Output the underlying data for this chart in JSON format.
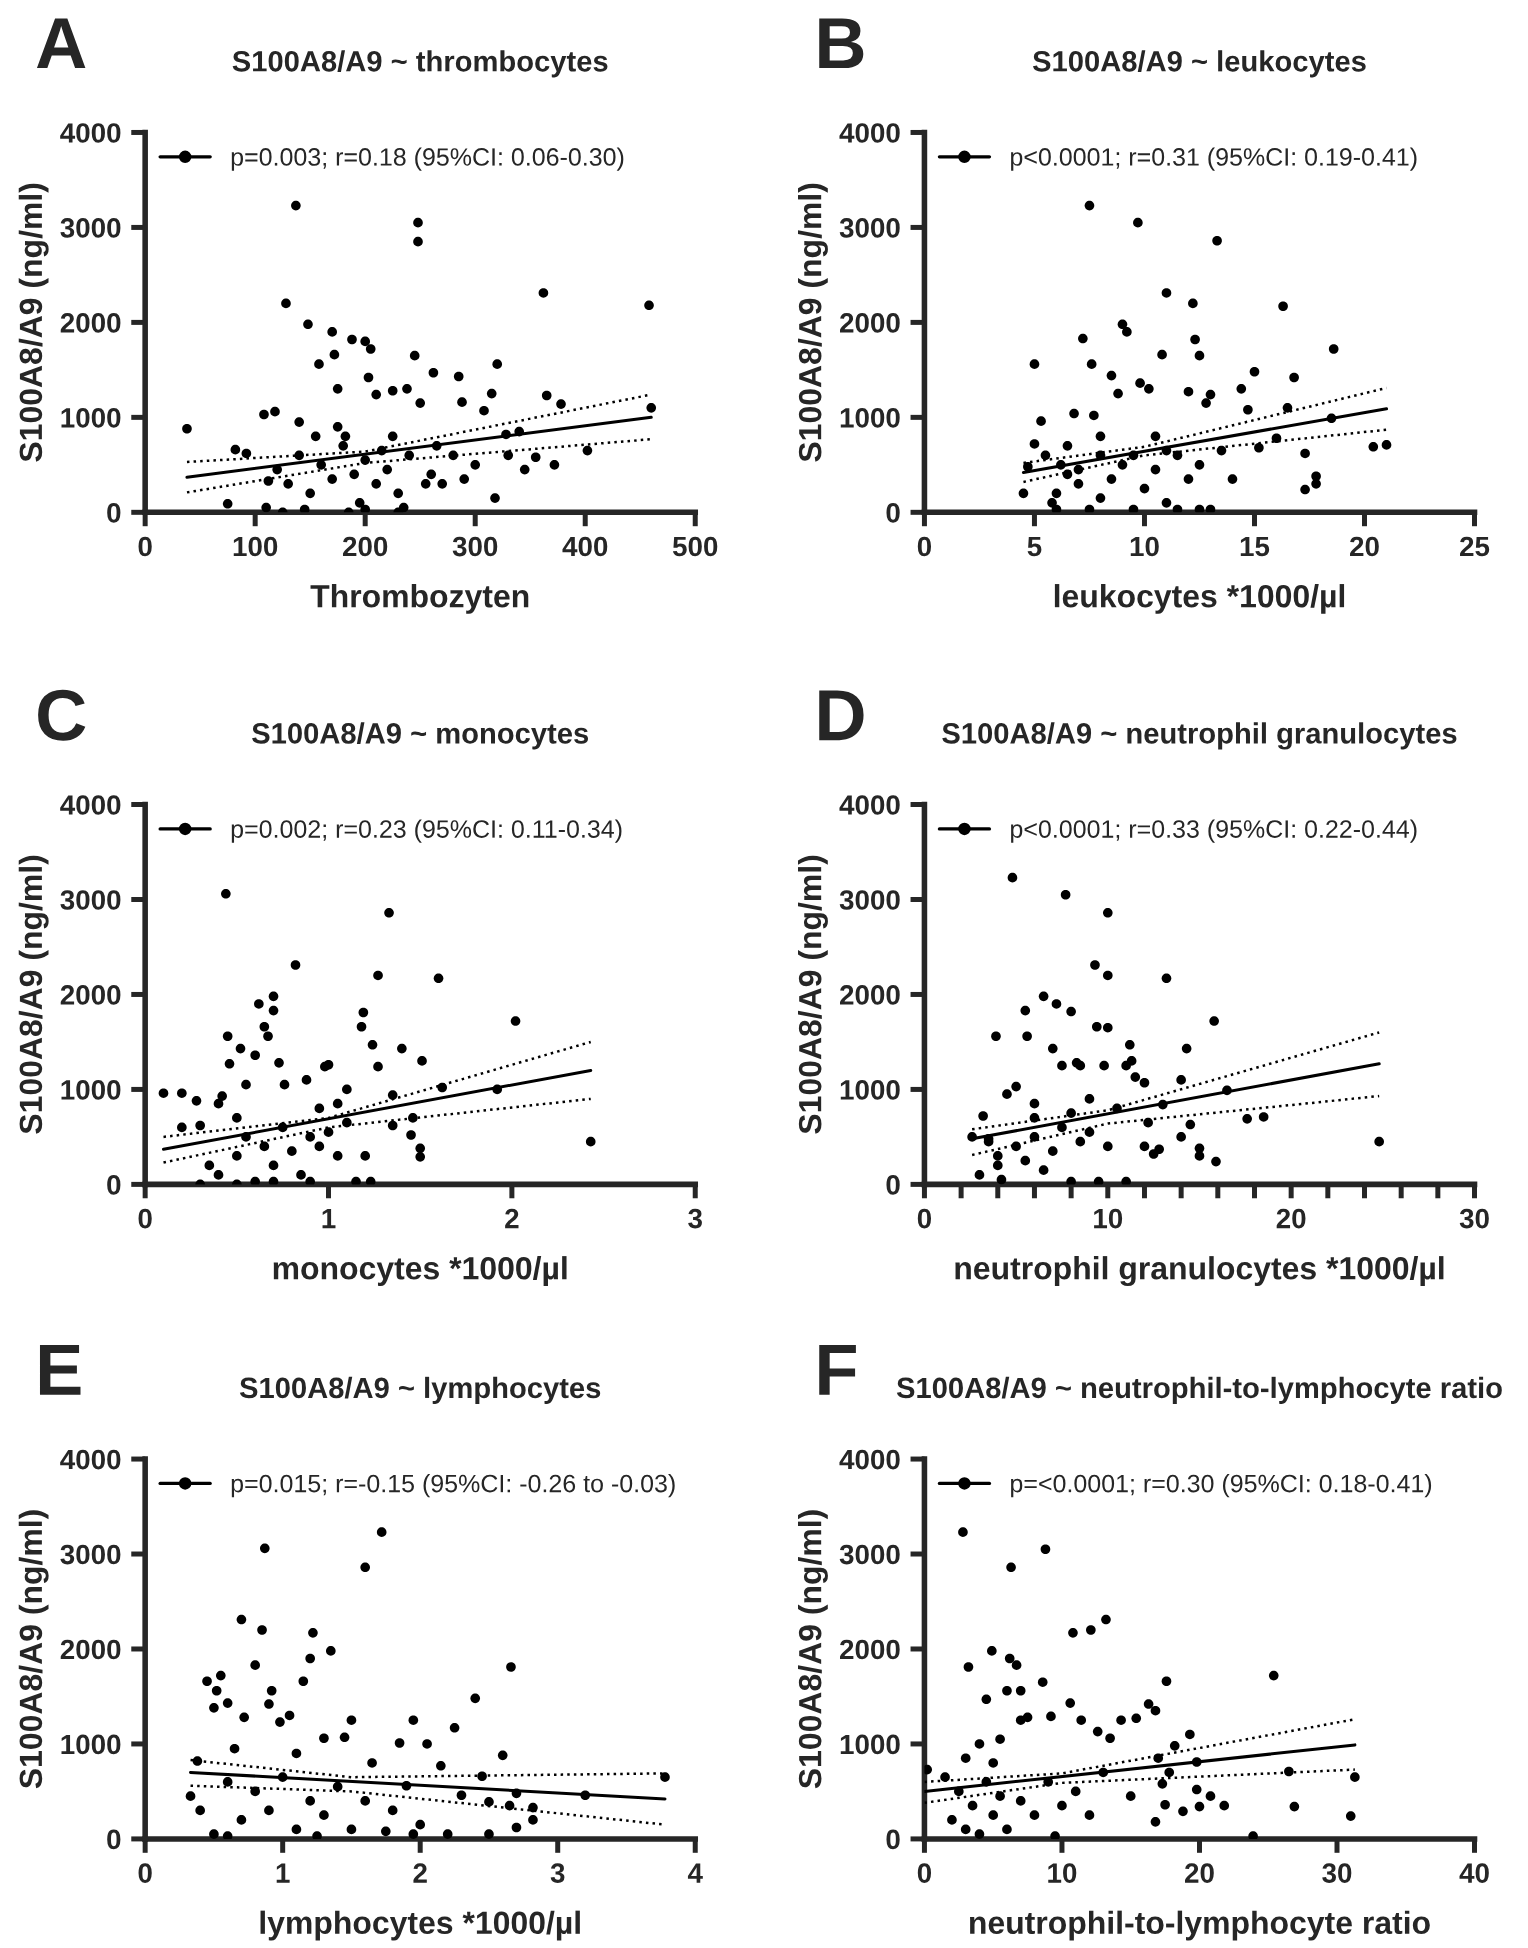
{
  "chart_data": [
    {
      "type": "scatter",
      "title": "S100A8/A9 ~ thrombocytes",
      "xlabel": "Thrombozyten",
      "ylabel": "S100A8/A9 (ng/ml)",
      "annotations": [
        "A"
      ],
      "xlim": [
        0,
        500
      ],
      "xticks": [
        0,
        100,
        200,
        300,
        400,
        500
      ],
      "ylim": [
        0,
        4000
      ],
      "yticks": [
        0,
        1000,
        2000,
        3000,
        4000
      ],
      "legend": "top left",
      "marker": "circle",
      "grid": false,
      "series": [
        {
          "name": "p=0.003; r=0.18 (95%CI: 0.06-0.30)",
          "color": "#000000",
          "x": [
            38,
            75,
            82,
            92,
            108,
            112,
            118,
            128,
            137,
            140,
            148,
            158,
            170,
            172,
            175,
            182,
            188,
            200,
            203,
            205,
            210,
            225,
            238,
            245,
            248,
            248,
            250,
            262,
            265,
            285,
            288,
            300,
            308,
            315,
            320,
            318,
            328,
            330,
            340,
            345,
            355,
            362,
            365,
            372,
            378,
            402,
            458,
            460,
            120,
            130,
            140,
            150,
            160,
            170,
            180,
            190,
            195,
            200,
            210,
            215,
            220,
            230,
            235,
            240,
            260,
            270,
            280,
            290,
            110,
            125,
            145,
            185,
            200,
            230,
            155,
            175,
            225,
            255
          ],
          "values": [
            880,
            90,
            660,
            620,
            1030,
            330,
            1060,
            2200,
            3230,
            950,
            1980,
            1560,
            1900,
            1660,
            1300,
            800,
            1820,
            1800,
            1420,
            1720,
            1240,
            1280,
            1300,
            1650,
            3050,
            2850,
            1150,
            1470,
            700,
            1430,
            1160,
            500,
            1070,
            1250,
            1560,
            150,
            820,
            600,
            850,
            450,
            580,
            2310,
            1230,
            500,
            1140,
            650,
            2180,
            1100,
            450,
            300,
            600,
            200,
            500,
            350,
            700,
            400,
            100,
            550,
            300,
            650,
            450,
            200,
            50,
            600,
            400,
            300,
            600,
            350,
            50,
            0,
            30,
            0,
            30,
            0,
            800,
            900,
            800,
            300
          ]
        },
        {
          "type": "line",
          "marker": "none",
          "line_style": "solid",
          "color": "#000000",
          "x": [
            38,
            460
          ],
          "values": [
            370,
            1000
          ]
        },
        {
          "type": "line",
          "marker": "none",
          "line_style": "dotted",
          "color": "#000000",
          "x": [
            38,
            200,
            460
          ],
          "values": [
            210,
            520,
            770
          ]
        },
        {
          "type": "line",
          "marker": "none",
          "line_style": "dotted",
          "color": "#000000",
          "x": [
            38,
            200,
            460
          ],
          "values": [
            530,
            640,
            1240
          ]
        }
      ]
    },
    {
      "type": "scatter",
      "title": "S100A8/A9 ~ leukocytes",
      "xlabel": "leukocytes *1000/µl",
      "ylabel": "S100A8/A9 (ng/ml)",
      "annotations": [
        "B"
      ],
      "xlim": [
        0,
        25
      ],
      "xticks": [
        0,
        5,
        10,
        15,
        20,
        25
      ],
      "ylim": [
        0,
        4000
      ],
      "yticks": [
        0,
        1000,
        2000,
        3000,
        4000
      ],
      "legend": "top left",
      "marker": "circle",
      "grid": false,
      "series": [
        {
          "name": "p<0.0001; r=0.31 (95%CI: 0.19-0.41)",
          "color": "#000000",
          "x": [
            4.5,
            4.7,
            5,
            5,
            5.3,
            5.5,
            5.8,
            6,
            6.2,
            6.5,
            6.8,
            7,
            7.2,
            7.5,
            7.6,
            7.7,
            8,
            8.5,
            8.8,
            9,
            9.2,
            9.5,
            9.7,
            9.8,
            10.2,
            10.5,
            10.8,
            11,
            11.5,
            12,
            12.2,
            12.3,
            12.5,
            12.8,
            13,
            13.3,
            13.5,
            14,
            14.4,
            14.7,
            15,
            15.2,
            16,
            16.3,
            16.5,
            16.8,
            17.3,
            17.3,
            17.8,
            17.8,
            18.6,
            18.5,
            20.4,
            21,
            6,
            7,
            8,
            8.5,
            9,
            10,
            10.5,
            11,
            11.5,
            12,
            12.5,
            13,
            7.5,
            9.5,
            6.5,
            8,
            11,
            12.5
          ],
          "values": [
            200,
            480,
            1560,
            720,
            960,
            600,
            100,
            30,
            500,
            400,
            1040,
            300,
            1830,
            3230,
            1560,
            1020,
            800,
            1440,
            1250,
            1980,
            1900,
            600,
            3050,
            1360,
            1300,
            800,
            1660,
            2310,
            600,
            1270,
            2200,
            1820,
            1650,
            1150,
            1240,
            2860,
            650,
            350,
            1300,
            1080,
            1480,
            680,
            780,
            2170,
            1100,
            1420,
            620,
            240,
            380,
            300,
            1720,
            990,
            690,
            710,
            200,
            450,
            150,
            350,
            500,
            250,
            450,
            100,
            30,
            350,
            30,
            30,
            30,
            30,
            700,
            600,
            650,
            500
          ]
        },
        {
          "type": "line",
          "marker": "none",
          "line_style": "solid",
          "color": "#000000",
          "x": [
            4.5,
            21
          ],
          "values": [
            420,
            1090
          ]
        },
        {
          "type": "line",
          "marker": "none",
          "line_style": "dotted",
          "color": "#000000",
          "x": [
            4.5,
            10,
            21
          ],
          "values": [
            320,
            600,
            870
          ]
        },
        {
          "type": "line",
          "marker": "none",
          "line_style": "dotted",
          "color": "#000000",
          "x": [
            4.5,
            10,
            21
          ],
          "values": [
            520,
            690,
            1310
          ]
        }
      ]
    },
    {
      "type": "scatter",
      "title": "S100A8/A9 ~ monocytes",
      "xlabel": "monocytes *1000/µl",
      "ylabel": "S100A8/A9 (ng/ml)",
      "annotations": [
        "C"
      ],
      "xlim": [
        0,
        3
      ],
      "xticks": [
        0,
        1,
        2,
        3
      ],
      "ylim": [
        0,
        4000
      ],
      "yticks": [
        0,
        1000,
        2000,
        3000,
        4000
      ],
      "legend": "top left",
      "marker": "circle",
      "grid": false,
      "series": [
        {
          "name": "p=0.002; r=0.23 (95%CI: 0.11-0.34)",
          "color": "#000000",
          "x": [
            0.1,
            0.2,
            0.2,
            0.28,
            0.3,
            0.3,
            0.35,
            0.4,
            0.42,
            0.44,
            0.45,
            0.46,
            0.5,
            0.52,
            0.55,
            0.6,
            0.62,
            0.65,
            0.67,
            0.7,
            0.7,
            0.73,
            0.76,
            0.82,
            0.88,
            0.95,
            0.98,
            1.0,
            1.05,
            1.1,
            1.2,
            1.15,
            1.23,
            1.18,
            1.19,
            1.24,
            1.27,
            1.27,
            1.33,
            1.35,
            1.35,
            1.4,
            1.45,
            1.46,
            1.5,
            1.5,
            1.51,
            1.6,
            1.62,
            1.92,
            2.02,
            2.43,
            0.4,
            0.5,
            0.55,
            0.6,
            0.65,
            0.7,
            0.75,
            0.8,
            0.85,
            0.9,
            0.95,
            1.0,
            1.05,
            1.1,
            0.5,
            0.7,
            0.9
          ],
          "values": [
            960,
            960,
            600,
            880,
            620,
            0,
            200,
            850,
            930,
            3060,
            1560,
            1270,
            700,
            1430,
            1050,
            1360,
            1900,
            1660,
            1560,
            1980,
            1830,
            1280,
            1050,
            2310,
            1100,
            800,
            1240,
            1260,
            850,
            1000,
            300,
            30,
            30,
            1660,
            1810,
            1470,
            2200,
            1240,
            2860,
            940,
            620,
            1430,
            520,
            700,
            380,
            290,
            1300,
            2170,
            1020,
            1000,
            1720,
            450,
            100,
            300,
            500,
            30,
            400,
            200,
            600,
            350,
            100,
            500,
            400,
            550,
            300,
            650,
            0,
            30,
            30
          ]
        },
        {
          "type": "line",
          "marker": "none",
          "line_style": "solid",
          "color": "#000000",
          "x": [
            0.1,
            2.43
          ],
          "values": [
            370,
            1200
          ]
        },
        {
          "type": "line",
          "marker": "none",
          "line_style": "dotted",
          "color": "#000000",
          "x": [
            0.1,
            1,
            2.43
          ],
          "values": [
            230,
            600,
            900
          ]
        },
        {
          "type": "line",
          "marker": "none",
          "line_style": "dotted",
          "color": "#000000",
          "x": [
            0.1,
            1,
            2.43
          ],
          "values": [
            500,
            700,
            1500
          ]
        }
      ]
    },
    {
      "type": "scatter",
      "title": "S100A8/A9 ~ neutrophil granulocytes",
      "xlabel": "neutrophil granulocytes *1000/µl",
      "ylabel": "S100A8/A9 (ng/ml)",
      "annotations": [
        "D"
      ],
      "xlim": [
        0,
        30
      ],
      "xticks": [
        0,
        {
          "value": 2,
          "label": null
        },
        {
          "value": 4,
          "label": null
        },
        {
          "value": 6,
          "label": null
        },
        {
          "value": 8,
          "label": null
        },
        10,
        {
          "value": 12,
          "label": null
        },
        {
          "value": 14,
          "label": null
        },
        {
          "value": 16,
          "label": null
        },
        {
          "value": 18,
          "label": null
        },
        20,
        {
          "value": 22,
          "label": null
        },
        {
          "value": 24,
          "label": null
        },
        {
          "value": 26,
          "label": null
        },
        {
          "value": 28,
          "label": null
        },
        30
      ],
      "ylim": [
        0,
        4000
      ],
      "yticks": [
        0,
        1000,
        2000,
        3000,
        4000
      ],
      "legend": "top left",
      "marker": "circle",
      "grid": false,
      "series": [
        {
          "name": "p<0.0001; r=0.33 (95%CI: 0.22-0.44)",
          "color": "#000000",
          "x": [
            2.6,
            3.2,
            3.5,
            3.9,
            4,
            4.2,
            4.5,
            4.8,
            5,
            5.5,
            5.6,
            6,
            6.5,
            7,
            7.2,
            7.5,
            7.7,
            8,
            8.3,
            8.5,
            9,
            9.3,
            9.4,
            9.8,
            10,
            10,
            10,
            10.5,
            11,
            11.2,
            11.3,
            11.5,
            12,
            12.2,
            12.5,
            13,
            13.2,
            14,
            14,
            14.3,
            14.5,
            15,
            15,
            15.8,
            15.9,
            16.5,
            17.6,
            18.5,
            24.8,
            3,
            4,
            5,
            5.5,
            6,
            6.5,
            7,
            7.5,
            8,
            8.5,
            9,
            9.5,
            10,
            11,
            3.5,
            6,
            8,
            12,
            12.8
          ],
          "values": [
            500,
            720,
            480,
            1560,
            300,
            50,
            950,
            3230,
            1030,
            1830,
            1560,
            700,
            1980,
            1430,
            1900,
            1250,
            3050,
            1820,
            1280,
            1250,
            900,
            2310,
            1660,
            1250,
            2200,
            2860,
            1650,
            800,
            1250,
            1470,
            1300,
            1130,
            1070,
            650,
            320,
            840,
            2170,
            1100,
            500,
            1430,
            630,
            380,
            300,
            1720,
            240,
            990,
            690,
            710,
            450,
            100,
            200,
            400,
            250,
            500,
            150,
            350,
            600,
            30,
            450,
            550,
            30,
            400,
            30,
            450,
            850,
            750,
            400,
            370
          ]
        },
        {
          "type": "line",
          "marker": "none",
          "line_style": "solid",
          "color": "#000000",
          "x": [
            2.6,
            24.8
          ],
          "values": [
            480,
            1270
          ]
        },
        {
          "type": "line",
          "marker": "none",
          "line_style": "dotted",
          "color": "#000000",
          "x": [
            2.6,
            10,
            24.8
          ],
          "values": [
            310,
            640,
            930
          ]
        },
        {
          "type": "line",
          "marker": "none",
          "line_style": "dotted",
          "color": "#000000",
          "x": [
            2.6,
            10,
            24.8
          ],
          "values": [
            580,
            780,
            1600
          ]
        }
      ]
    },
    {
      "type": "scatter",
      "title": "S100A8/A9 ~ lymphocytes",
      "xlabel": "lymphocytes *1000/µl",
      "ylabel": "S100A8/A9 (ng/ml)",
      "annotations": [
        "E"
      ],
      "xlim": [
        0,
        4
      ],
      "xticks": [
        0,
        1,
        2,
        3,
        4
      ],
      "ylim": [
        0,
        4000
      ],
      "yticks": [
        0,
        1000,
        2000,
        3000,
        4000
      ],
      "legend": "top left",
      "marker": "circle",
      "grid": false,
      "series": [
        {
          "name": "p=0.015; r=-0.15 (95%CI: -0.26 to -0.03)",
          "color": "#000000",
          "x": [
            0.33,
            0.38,
            0.45,
            0.5,
            0.52,
            0.55,
            0.6,
            0.65,
            0.7,
            0.72,
            0.8,
            0.85,
            0.87,
            0.9,
            0.92,
            0.98,
            1.05,
            1.1,
            1.15,
            1.2,
            1.22,
            1.3,
            1.35,
            1.45,
            1.5,
            1.6,
            1.65,
            1.72,
            1.85,
            1.9,
            1.95,
            2.05,
            2.15,
            2.25,
            2.3,
            2.4,
            2.45,
            2.5,
            2.6,
            2.66,
            2.65,
            2.7,
            2.7,
            2.82,
            2.82,
            3.2,
            3.78,
            0.4,
            0.5,
            0.6,
            0.7,
            0.8,
            0.9,
            1.0,
            1.1,
            1.2,
            1.3,
            1.4,
            1.5,
            1.6,
            1.8,
            2.0,
            2.2,
            2.5,
            0.6,
            1.25,
            1.75,
            1.95
          ],
          "values": [
            450,
            820,
            1660,
            1380,
            1560,
            1720,
            1430,
            950,
            2310,
            1280,
            1830,
            2200,
            3060,
            1420,
            1560,
            1230,
            1300,
            900,
            1660,
            1900,
            2170,
            1060,
            1980,
            1070,
            1250,
            2860,
            800,
            3230,
            1010,
            560,
            1250,
            1000,
            770,
            1170,
            460,
            1480,
            660,
            390,
            880,
            1810,
            350,
            480,
            120,
            330,
            200,
            460,
            650,
            300,
            50,
            600,
            200,
            500,
            300,
            650,
            100,
            400,
            250,
            550,
            100,
            400,
            300,
            150,
            50,
            50,
            30,
            30,
            80,
            50
          ]
        },
        {
          "type": "line",
          "marker": "none",
          "line_style": "solid",
          "color": "#000000",
          "x": [
            0.33,
            3.78
          ],
          "values": [
            700,
            420
          ]
        },
        {
          "type": "line",
          "marker": "none",
          "line_style": "dotted",
          "color": "#000000",
          "x": [
            0.33,
            1.5,
            3.78
          ],
          "values": [
            560,
            500,
            150
          ]
        },
        {
          "type": "line",
          "marker": "none",
          "line_style": "dotted",
          "color": "#000000",
          "x": [
            0.33,
            1.5,
            3.78
          ],
          "values": [
            830,
            650,
            690
          ]
        }
      ]
    },
    {
      "type": "scatter",
      "title": "S100A8/A9 ~ neutrophil-to-lymphocyte ratio",
      "xlabel": "neutrophil-to-lymphocyte ratio",
      "ylabel": "S100A8/A9 (ng/ml)",
      "annotations": [
        "F"
      ],
      "xlim": [
        0,
        40
      ],
      "xticks": [
        0,
        10,
        20,
        30,
        40
      ],
      "ylim": [
        0,
        4000
      ],
      "yticks": [
        0,
        1000,
        2000,
        3000,
        4000
      ],
      "legend": "top left",
      "marker": "circle",
      "grid": false,
      "series": [
        {
          "name": "p=<0.0001; r=0.30 (95%CI: 0.18-0.41)",
          "color": "#000000",
          "x": [
            0.2,
            2.8,
            3.2,
            4,
            4.5,
            4.9,
            5.5,
            6,
            6.3,
            6.2,
            6.7,
            7,
            7,
            7.5,
            8.8,
            8.6,
            9.2,
            9.5,
            10.6,
            10.8,
            11.4,
            12.1,
            12.6,
            13.2,
            13.5,
            14.3,
            15.4,
            16.3,
            16.8,
            17.6,
            17,
            17.3,
            17.8,
            17.5,
            18.2,
            18.8,
            19.3,
            19.8,
            19.8,
            20,
            20.8,
            21.8,
            23.9,
            25.4,
            26.5,
            26.9,
            31,
            31.3,
            2,
            2.5,
            3,
            3.5,
            4,
            4.5,
            5,
            5.5,
            6,
            7,
            8,
            9,
            10,
            11,
            12,
            13,
            15,
            16.8,
            1.5,
            3,
            5
          ],
          "values": [
            730,
            3230,
            1810,
            1000,
            1470,
            1980,
            1050,
            1560,
            2860,
            1900,
            1830,
            1560,
            1250,
            1280,
            3050,
            1650,
            1290,
            30,
            1430,
            2170,
            1250,
            2200,
            1130,
            2310,
            1060,
            1250,
            1270,
            1420,
            1350,
            1660,
            850,
            580,
            700,
            360,
            980,
            290,
            1100,
            810,
            520,
            340,
            450,
            350,
            30,
            1720,
            710,
            340,
            240,
            650,
            200,
            500,
            100,
            350,
            50,
            600,
            250,
            450,
            100,
            400,
            250,
            600,
            350,
            500,
            250,
            700,
            450,
            180,
            650,
            850,
            800
          ]
        },
        {
          "type": "line",
          "marker": "none",
          "line_style": "solid",
          "color": "#000000",
          "x": [
            0,
            31.3
          ],
          "values": [
            500,
            990
          ]
        },
        {
          "type": "line",
          "marker": "none",
          "line_style": "dotted",
          "color": "#000000",
          "x": [
            0,
            10,
            31.3
          ],
          "values": [
            380,
            590,
            730
          ]
        },
        {
          "type": "line",
          "marker": "none",
          "line_style": "dotted",
          "color": "#000000",
          "x": [
            0,
            10,
            31.3
          ],
          "values": [
            600,
            690,
            1260
          ]
        }
      ]
    }
  ]
}
